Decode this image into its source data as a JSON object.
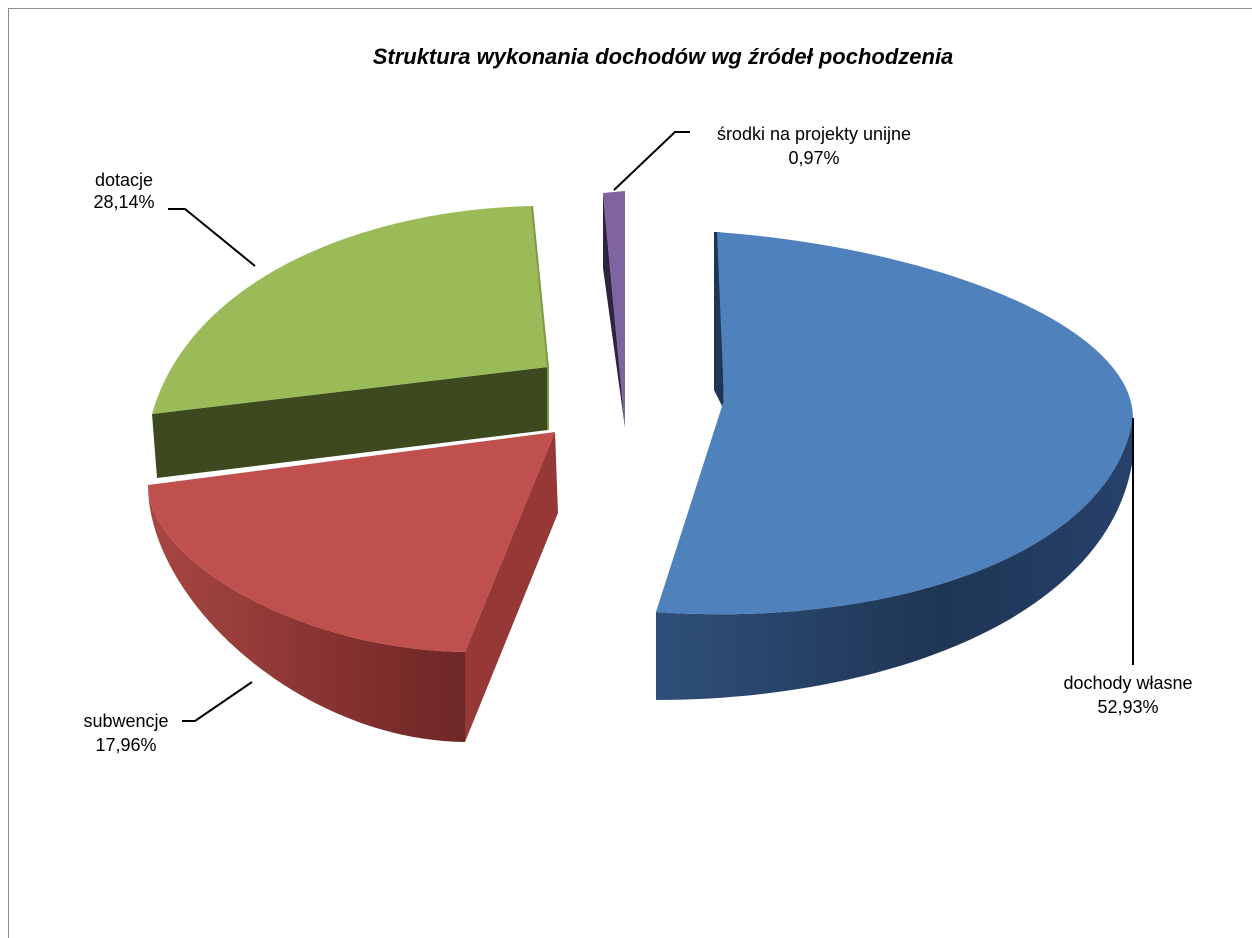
{
  "chart_data": {
    "type": "pie",
    "style": "3d-exploded",
    "title": "Struktura wykonania dochodów wg źródeł pochodzenia",
    "slices": [
      {
        "label": "dochody własne",
        "value_text": "52,93%",
        "value": 52.93,
        "color": "#4f81bd"
      },
      {
        "label": "subwencje",
        "value_text": "17,96%",
        "value": 17.96,
        "color": "#c0504d"
      },
      {
        "label": "dotacje",
        "value_text": "28,14%",
        "value": 28.14,
        "color": "#9bbb59"
      },
      {
        "label": "środki na projekty unijne",
        "value_text": "0,97%",
        "value": 0.97,
        "color": "#8064a2"
      }
    ],
    "legend": "none",
    "data_labels": "outside-with-leaders"
  }
}
